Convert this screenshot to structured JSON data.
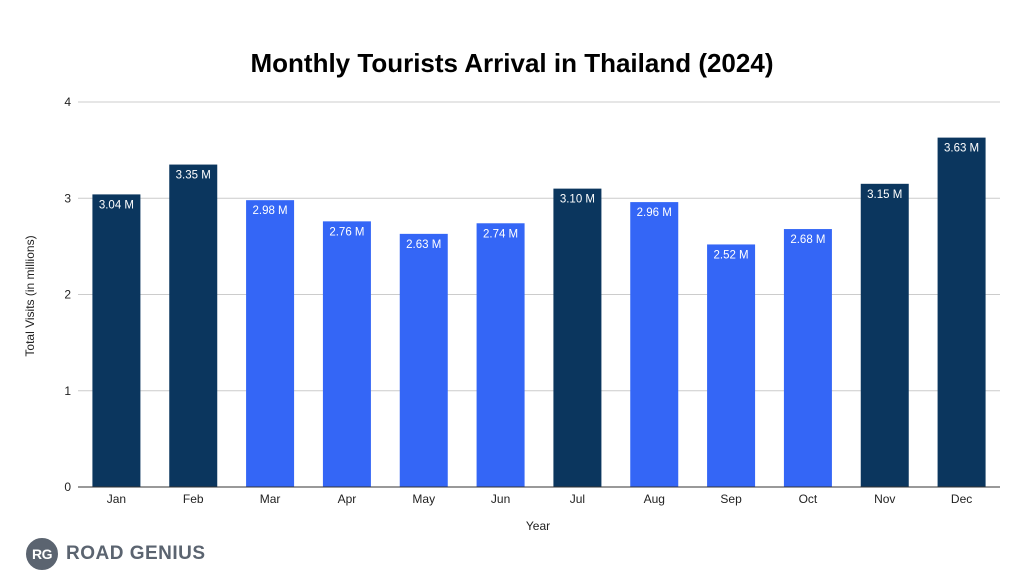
{
  "chart_data": {
    "type": "bar",
    "title": "Monthly Tourists Arrival in Thailand (2024)",
    "xlabel": "Year",
    "ylabel": "Total Visits (in millions)",
    "ylim": [
      0,
      4
    ],
    "yticks": [
      "0",
      "1",
      "2",
      "3",
      "4"
    ],
    "grid": true,
    "categories": [
      "Jan",
      "Feb",
      "Mar",
      "Apr",
      "May",
      "Jun",
      "Jul",
      "Aug",
      "Sep",
      "Oct",
      "Nov",
      "Dec"
    ],
    "values": [
      3.04,
      3.35,
      2.98,
      2.76,
      2.63,
      2.74,
      3.1,
      2.96,
      2.52,
      2.68,
      3.15,
      3.63
    ],
    "data_labels": [
      "3.04 M",
      "3.35 M",
      "2.98 M",
      "2.76 M",
      "2.63 M",
      "2.74 M",
      "3.10 M",
      "2.96 M",
      "2.52 M",
      "2.68 M",
      "3.15 M",
      "3.63 M"
    ],
    "highlighted": [
      true,
      true,
      false,
      false,
      false,
      false,
      true,
      false,
      false,
      false,
      true,
      true
    ],
    "colors": {
      "highlight": "#0b365e",
      "normal": "#3466f6"
    }
  },
  "brand": {
    "badge_text": "RG",
    "name": "ROAD GENIUS"
  }
}
